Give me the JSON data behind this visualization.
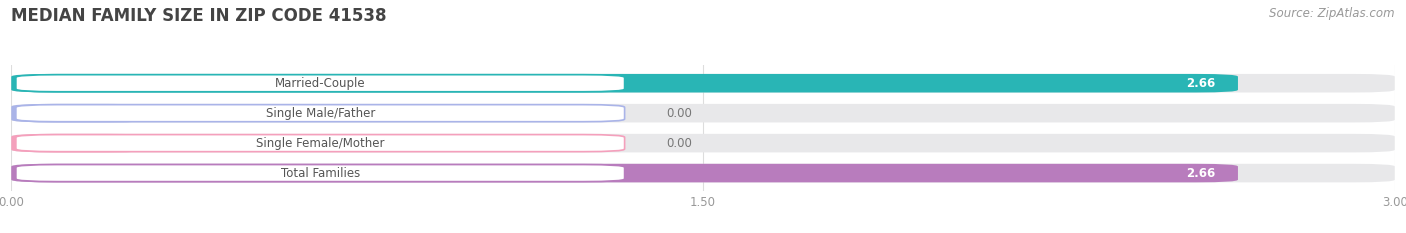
{
  "title": "MEDIAN FAMILY SIZE IN ZIP CODE 41538",
  "source": "Source: ZipAtlas.com",
  "categories": [
    "Married-Couple",
    "Single Male/Father",
    "Single Female/Mother",
    "Total Families"
  ],
  "values": [
    2.66,
    0.0,
    0.0,
    2.66
  ],
  "bar_colors": [
    "#29b5b5",
    "#aab4e8",
    "#f4a0bc",
    "#b87cbd"
  ],
  "xlim": [
    0,
    3.0
  ],
  "xticks": [
    0.0,
    1.5,
    3.0
  ],
  "xtick_labels": [
    "0.00",
    "1.50",
    "3.00"
  ],
  "background_color": "#ffffff",
  "bar_bg_color": "#e8e8ea",
  "title_fontsize": 12,
  "source_fontsize": 8.5,
  "label_fontsize": 8.5,
  "value_fontsize": 8.5,
  "tick_fontsize": 8.5
}
